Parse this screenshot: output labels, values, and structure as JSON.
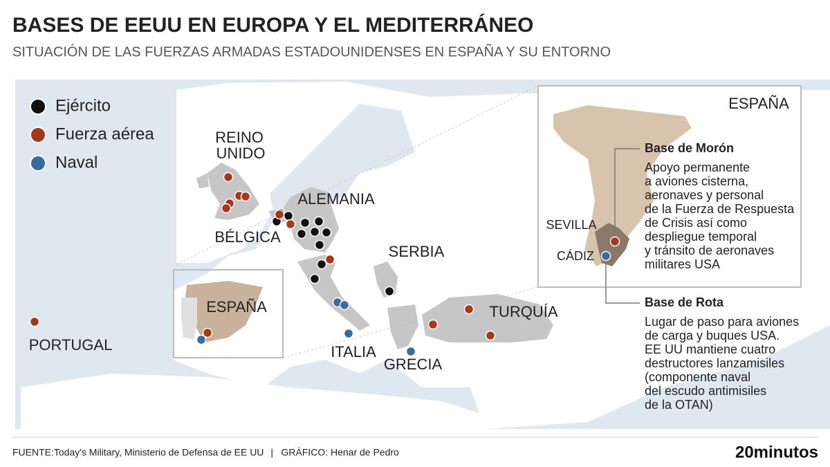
{
  "header": {
    "title": "BASES DE EEUU EN EUROPA Y EL MEDITERRÁNEO",
    "subtitle": "SITUACIÓN DE LAS FUERZAS ARMADAS ESTADOUNIDENSES EN ESPAÑA Y SU ENTORNO"
  },
  "legend": [
    {
      "label": "Ejército",
      "color": "#111111"
    },
    {
      "label": "Fuerza aérea",
      "color": "#a23a1a"
    },
    {
      "label": "Naval",
      "color": "#3a6aa0"
    }
  ],
  "map_labels": [
    "REINO",
    "UNIDO",
    "ALEMANIA",
    "BÉLGICA",
    "SERBIA",
    "ESPAÑA",
    "PORTUGAL",
    "ITALIA",
    "GRECIA",
    "TURQUÍA"
  ],
  "inset": {
    "country": "ESPAÑA",
    "cities": [
      "SEVILLA",
      "CÁDIZ"
    ],
    "bases": [
      {
        "title": "Base de Morón",
        "lines": [
          "Apoyo permanente",
          "a aviones cisterna,",
          "aeronaves y personal",
          "de la Fuerza de Respuesta",
          "de Crisis así como",
          "despliegue temporal",
          "y tránsito de aeronaves",
          "militares USA"
        ]
      },
      {
        "title": "Base de Rota",
        "lines": [
          "Lugar de paso para aviones",
          "de carga y buques USA.",
          "EE UU mantiene cuatro",
          "destructores lanzamisiles",
          "(componente naval",
          "del escudo antimisiles",
          "de la OTAN)"
        ]
      }
    ]
  },
  "footer": {
    "source": "FUENTE:Today's Military, Ministerio de Defensa de EE UU",
    "separator": "|",
    "credit": "GRÁFICO: Henar de Pedro",
    "logo": "20minutos"
  }
}
